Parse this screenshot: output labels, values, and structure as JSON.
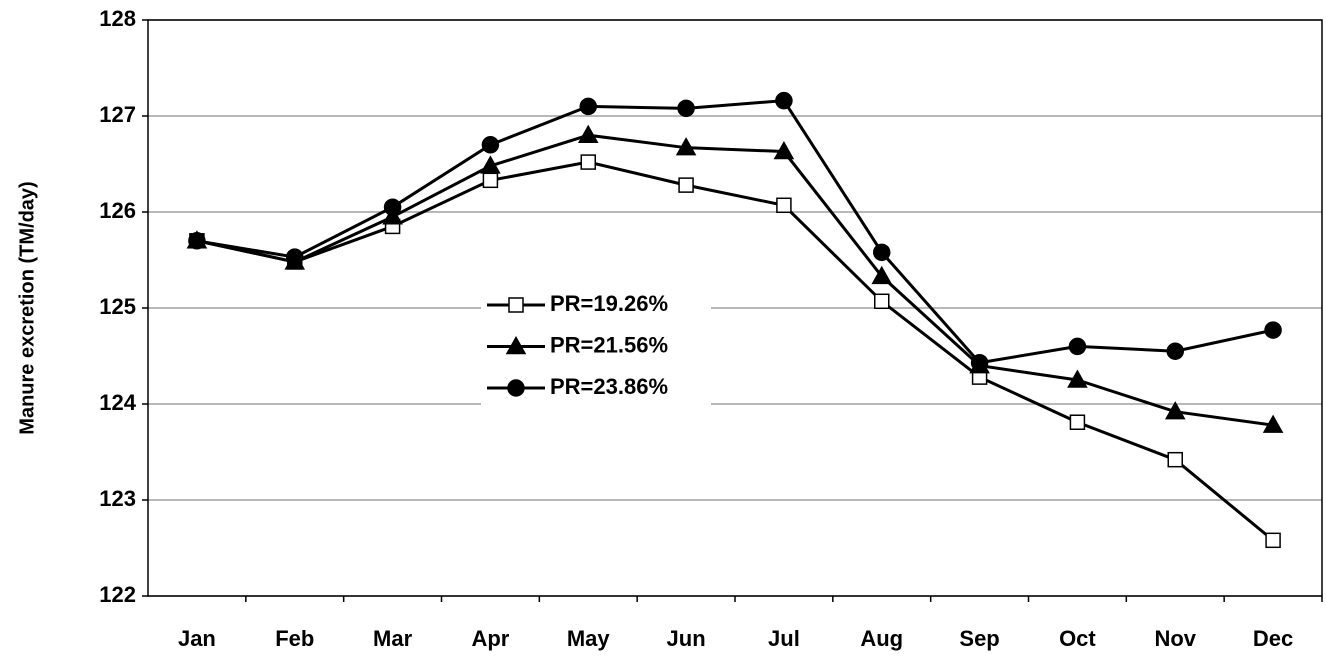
{
  "chart_data": {
    "type": "line",
    "y_label": "Manure excretion (TM/day)",
    "categories": [
      "Jan",
      "Feb",
      "Mar",
      "Apr",
      "May",
      "Jun",
      "Jul",
      "Aug",
      "Sep",
      "Oct",
      "Nov",
      "Dec"
    ],
    "series": [
      {
        "name": "PR=19.26%",
        "color": "#000000",
        "marker": "square",
        "marker_fill": "#ffffff",
        "values": [
          125.7,
          125.48,
          125.85,
          126.33,
          126.52,
          126.28,
          126.07,
          125.07,
          124.28,
          123.81,
          123.42,
          122.58
        ]
      },
      {
        "name": "PR=21.56%",
        "color": "#000000",
        "marker": "triangle",
        "marker_fill": "#000000",
        "values": [
          125.7,
          125.48,
          125.95,
          126.48,
          126.8,
          126.67,
          126.63,
          125.33,
          124.4,
          124.25,
          123.92,
          123.78
        ]
      },
      {
        "name": "PR=23.86%",
        "color": "#000000",
        "marker": "circle",
        "marker_fill": "#000000",
        "values": [
          125.7,
          125.53,
          126.05,
          126.7,
          127.1,
          127.08,
          127.16,
          125.58,
          124.43,
          124.6,
          124.55,
          124.77
        ]
      }
    ],
    "ylim": [
      122,
      128
    ],
    "yticks": [
      122,
      123,
      124,
      125,
      126,
      127,
      128
    ],
    "grid": true,
    "legend": "center"
  }
}
